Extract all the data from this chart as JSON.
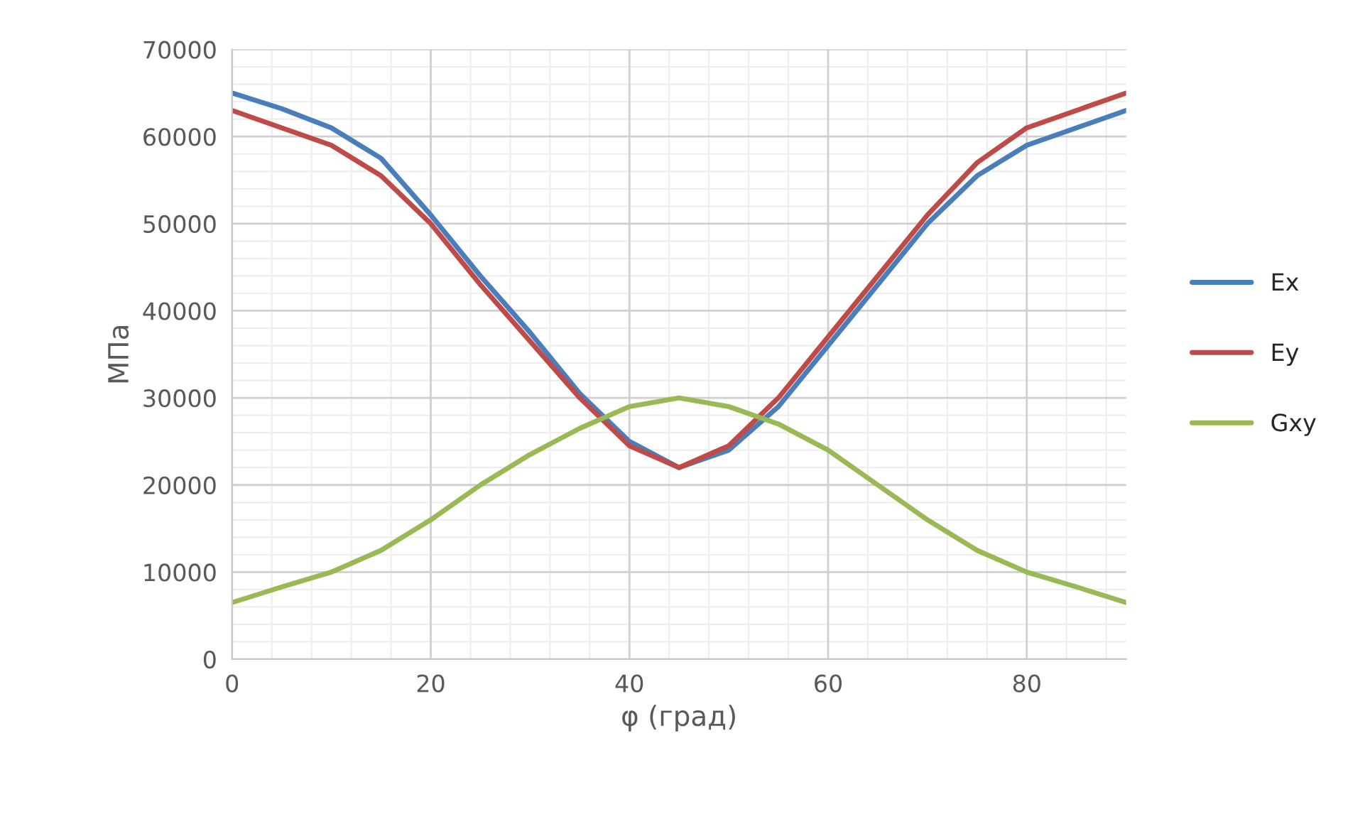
{
  "chart_data": {
    "type": "line",
    "xlabel": "φ (град)",
    "ylabel": "МПа",
    "x": [
      0,
      5,
      10,
      15,
      20,
      25,
      30,
      35,
      40,
      45,
      50,
      55,
      60,
      65,
      70,
      75,
      80,
      85,
      90
    ],
    "series": [
      {
        "name": "Ex",
        "color": "#4a7ebb",
        "values": [
          65000,
          63200,
          61000,
          57500,
          51000,
          44000,
          37500,
          30500,
          25000,
          22000,
          24000,
          29000,
          36000,
          43000,
          50000,
          55500,
          59000,
          61000,
          63000
        ]
      },
      {
        "name": "Ey",
        "color": "#be4b48",
        "values": [
          63000,
          61000,
          59000,
          55500,
          50000,
          43000,
          36500,
          30000,
          24500,
          22000,
          24500,
          30000,
          37000,
          44000,
          51000,
          57000,
          61000,
          63000,
          65000
        ]
      },
      {
        "name": "Gxy",
        "color": "#98b954",
        "values": [
          6500,
          8300,
          10000,
          12500,
          16000,
          20000,
          23500,
          26500,
          29000,
          30000,
          29000,
          27000,
          24000,
          20000,
          16000,
          12500,
          10000,
          8300,
          6500
        ]
      }
    ],
    "xlim": [
      0,
      90
    ],
    "xticks": [
      0,
      20,
      40,
      60,
      80
    ],
    "ylim": [
      0,
      70000
    ],
    "yticks": [
      0,
      10000,
      20000,
      30000,
      40000,
      50000,
      60000,
      70000
    ],
    "grid": true,
    "legend": "right",
    "marker": "none",
    "line_style": "solid"
  }
}
